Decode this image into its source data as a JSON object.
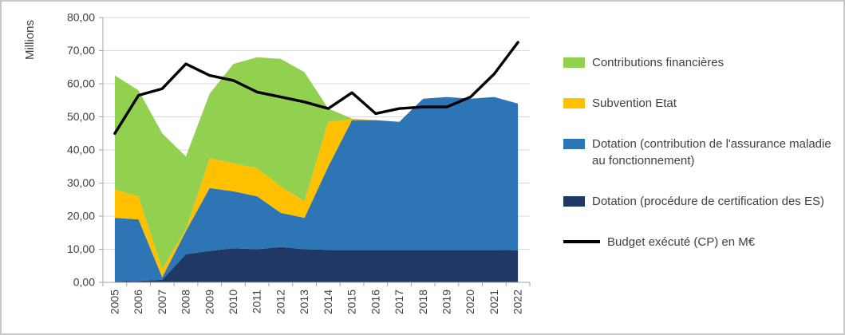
{
  "chart_data": {
    "type": "area",
    "stacked": true,
    "ylabel": "Millions",
    "ylim": [
      0,
      80
    ],
    "ytick_step": 10,
    "ytick_labels": [
      "0,00",
      "10,00",
      "20,00",
      "30,00",
      "40,00",
      "50,00",
      "60,00",
      "70,00",
      "80,00"
    ],
    "grid": true,
    "legend_position": "right",
    "x": [
      "2005",
      "2006",
      "2007",
      "2008",
      "2009",
      "2010",
      "2011",
      "2012",
      "2013",
      "2014",
      "2015",
      "2016",
      "2017",
      "2018",
      "2019",
      "2020",
      "2021",
      "2022"
    ],
    "series": [
      {
        "name": "Dotation (procédure de certification des ES)",
        "color": "#1F3864",
        "values": [
          0.3,
          0.4,
          0.8,
          8.5,
          9.5,
          10.3,
          10.0,
          10.7,
          10.0,
          9.8,
          9.8,
          9.8,
          9.8,
          9.8,
          9.8,
          9.8,
          9.8,
          9.7
        ]
      },
      {
        "name": "Dotation (contribution de l'assurance maladie au fonctionnement)",
        "color": "#2E75B6",
        "values": [
          19.2,
          18.6,
          0.7,
          7.0,
          19.0,
          17.2,
          16.0,
          10.3,
          9.5,
          25.2,
          39.2,
          39.2,
          38.7,
          45.7,
          46.2,
          45.7,
          46.2,
          44.3
        ]
      },
      {
        "name": "Subvention Etat",
        "color": "#FFC000",
        "values": [
          8.5,
          7.0,
          2.5,
          0.5,
          9.0,
          8.5,
          8.5,
          8.0,
          5.0,
          13.5,
          0.3,
          0,
          0,
          0,
          0,
          0,
          0,
          0
        ]
      },
      {
        "name": "Contributions financières",
        "color": "#92D050",
        "values": [
          34.5,
          32.0,
          41.0,
          22.0,
          19.5,
          30.0,
          33.5,
          38.5,
          39.0,
          4.0,
          0.2,
          0,
          0,
          0,
          0,
          0,
          0,
          0
        ]
      }
    ],
    "line_series": {
      "name": "Budget exécuté (CP) en M€",
      "color": "#000000",
      "values": [
        45.0,
        56.5,
        58.5,
        66.0,
        62.5,
        61.0,
        57.5,
        56.0,
        54.5,
        52.5,
        57.3,
        51.0,
        52.5,
        53.0,
        53.0,
        56.0,
        63.0,
        72.5
      ]
    }
  },
  "legend": {
    "items": [
      {
        "label": "Contributions financières",
        "color": "#92D050",
        "type": "area"
      },
      {
        "label": "Subvention Etat",
        "color": "#FFC000",
        "type": "area"
      },
      {
        "label": "Dotation (contribution de l'assurance maladie au fonctionnement)",
        "color": "#2E75B6",
        "type": "area"
      },
      {
        "label": "Dotation (procédure de certification des ES)",
        "color": "#1F3864",
        "type": "area"
      },
      {
        "label": "Budget exécuté (CP) en M€",
        "color": "#000000",
        "type": "line"
      }
    ]
  }
}
